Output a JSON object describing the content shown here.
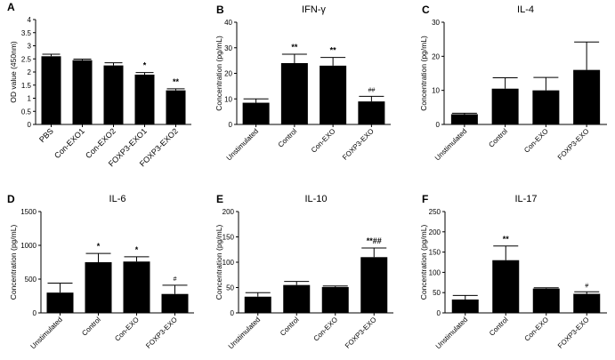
{
  "chart_data": [
    {
      "panel": "A",
      "type": "bar",
      "title": "",
      "ylabel": "OD value (450nm)",
      "xlabel": "",
      "categories": [
        "PBS",
        "Con-EXO1",
        "Con-EXO2",
        "FOXP3-EXO1",
        "FOXP3-EXO2"
      ],
      "values": [
        2.6,
        2.45,
        2.25,
        1.9,
        1.3
      ],
      "errors": [
        0.08,
        0.04,
        0.1,
        0.08,
        0.06
      ],
      "annotations": [
        "",
        "",
        "",
        "*",
        "**"
      ],
      "ylim": [
        0,
        4
      ],
      "yticks": [
        0,
        0.5,
        1,
        1.5,
        2,
        2.5,
        3,
        3.5,
        4
      ],
      "ytick_labels": [
        "0",
        "0.5",
        "1",
        "1.5",
        "2",
        "2.5",
        "3",
        "3.5",
        "4"
      ]
    },
    {
      "panel": "B",
      "type": "bar",
      "title": "IFN-γ",
      "ylabel": "Concentration (pg/mL)",
      "xlabel": "",
      "categories": [
        "Unstimulated",
        "Control",
        "Con-EXO",
        "FOXP3-EXO"
      ],
      "values": [
        8.5,
        24,
        23,
        9
      ],
      "errors": [
        1.5,
        3.5,
        3.2,
        2
      ],
      "annotations": [
        "",
        "**",
        "**",
        "##"
      ],
      "ylim": [
        0,
        40
      ],
      "yticks": [
        0,
        10,
        20,
        30,
        40
      ],
      "ytick_labels": [
        "0",
        "10",
        "20",
        "30",
        "40"
      ]
    },
    {
      "panel": "C",
      "type": "bar",
      "title": "IL-4",
      "ylabel": "Concentration (pg/mL)",
      "xlabel": "",
      "categories": [
        "Unstimulated",
        "Control",
        "Con-EXO",
        "FOXP3-EXO"
      ],
      "values": [
        3,
        10.5,
        10,
        16
      ],
      "errors": [
        0.3,
        3.2,
        3.8,
        8.2
      ],
      "annotations": [
        "",
        "",
        "",
        ""
      ],
      "ylim": [
        0,
        30
      ],
      "yticks": [
        0,
        10,
        20,
        30
      ],
      "ytick_labels": [
        "0",
        "10",
        "20",
        "30"
      ]
    },
    {
      "panel": "D",
      "type": "bar",
      "title": "IL-6",
      "ylabel": "Concentration (pg/mL)",
      "xlabel": "",
      "categories": [
        "Unstimulated",
        "Control",
        "Con-EXO",
        "FOXP3-EXO"
      ],
      "values": [
        300,
        750,
        760,
        280
      ],
      "errors": [
        140,
        130,
        70,
        130
      ],
      "annotations": [
        "",
        "*",
        "*",
        "#"
      ],
      "ylim": [
        0,
        1500
      ],
      "yticks": [
        0,
        500,
        1000,
        1500
      ],
      "ytick_labels": [
        "0",
        "500",
        "1000",
        "1500"
      ]
    },
    {
      "panel": "E",
      "type": "bar",
      "title": "IL-10",
      "ylabel": "Concentration (pg/mL)",
      "xlabel": "",
      "categories": [
        "Unstimulated",
        "Control",
        "Con-EXO",
        "FOXP3-EXO"
      ],
      "values": [
        32,
        55,
        51,
        110
      ],
      "errors": [
        8,
        7,
        2,
        18
      ],
      "annotations": [
        "",
        "",
        "",
        "**##"
      ],
      "ylim": [
        0,
        200
      ],
      "yticks": [
        0,
        50,
        100,
        150,
        200
      ],
      "ytick_labels": [
        "0",
        "50",
        "100",
        "150",
        "200"
      ]
    },
    {
      "panel": "F",
      "type": "bar",
      "title": "IL-17",
      "ylabel": "Concentration (pg/mL)",
      "xlabel": "",
      "categories": [
        "Unstimulated",
        "Control",
        "Con-EXO",
        "FOXP3-EXO"
      ],
      "values": [
        33,
        130,
        60,
        47
      ],
      "errors": [
        10,
        35,
        2,
        5
      ],
      "annotations": [
        "",
        "**",
        "",
        "#"
      ],
      "ylim": [
        0,
        250
      ],
      "yticks": [
        0,
        50,
        100,
        150,
        200,
        250
      ],
      "ytick_labels": [
        "0",
        "50",
        "100",
        "150",
        "200",
        "250"
      ]
    }
  ]
}
